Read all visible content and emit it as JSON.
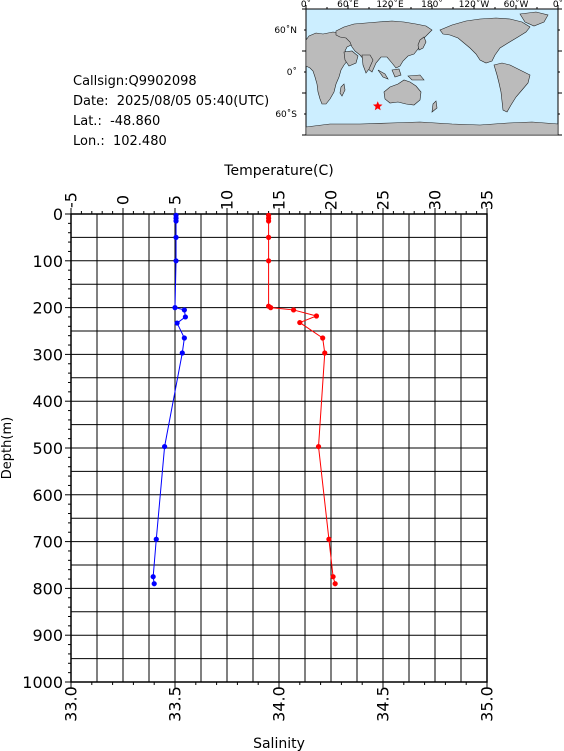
{
  "info": {
    "callsign": "Callsign:Q9902098",
    "date": "Date:  2025/08/05 05:40(UTC)",
    "lat": "Lat.:  -48.860",
    "lon": "Lon.:  102.480"
  },
  "map": {
    "top_labels": [
      "0˚",
      "60˚E",
      "120˚E",
      "180˚",
      "120˚W",
      "60˚W",
      "0˚"
    ],
    "left_labels": [
      "60˚N",
      "0˚",
      "60˚S"
    ],
    "ocean_color": "#cceeff",
    "land_color": "#bbbbbb",
    "marker": {
      "lon": 102.48,
      "lat": -48.86,
      "color": "#ff0000",
      "icon": "star-icon"
    }
  },
  "chart_data": [
    {
      "type": "line",
      "series": [
        {
          "axis": "temperature",
          "color": "#0000ff",
          "points": [
            [
              5.1,
              3
            ],
            [
              5.1,
              9
            ],
            [
              5.1,
              15
            ],
            [
              5.1,
              50
            ],
            [
              5.1,
              100
            ],
            [
              5.0,
              200
            ],
            [
              5.9,
              205
            ],
            [
              6.0,
              220
            ],
            [
              5.2,
              233
            ],
            [
              5.9,
              265
            ],
            [
              5.7,
              297
            ],
            [
              4.0,
              497
            ],
            [
              3.2,
              695
            ],
            [
              2.9,
              775
            ],
            [
              3.0,
              790
            ]
          ]
        },
        {
          "axis": "salinity",
          "color": "#ff0000",
          "points": [
            [
              33.95,
              3
            ],
            [
              33.95,
              9
            ],
            [
              33.95,
              15
            ],
            [
              33.95,
              50
            ],
            [
              33.95,
              100
            ],
            [
              33.95,
              197
            ],
            [
              33.96,
              200
            ],
            [
              34.07,
              205
            ],
            [
              34.18,
              218
            ],
            [
              34.1,
              232
            ],
            [
              34.21,
              265
            ],
            [
              34.22,
              297
            ],
            [
              34.19,
              497
            ],
            [
              34.24,
              695
            ],
            [
              34.26,
              775
            ],
            [
              34.27,
              790
            ]
          ]
        }
      ],
      "y_axis": {
        "label": "Depth(m)",
        "range": [
          0,
          1000
        ],
        "ticks": [
          "0",
          "100",
          "200",
          "300",
          "400",
          "500",
          "600",
          "700",
          "800",
          "900",
          "1000"
        ]
      },
      "x_axis_top": {
        "label": "Temperature(C)",
        "range": [
          -5,
          35
        ],
        "ticks": [
          "-5",
          "0",
          "5",
          "10",
          "15",
          "20",
          "25",
          "30",
          "35"
        ]
      },
      "x_axis_bottom": {
        "label": "Salinity",
        "range": [
          33.0,
          35.0
        ],
        "ticks": [
          "33.0",
          "33.5",
          "34.0",
          "34.5",
          "35.0"
        ]
      },
      "grid": true
    }
  ]
}
